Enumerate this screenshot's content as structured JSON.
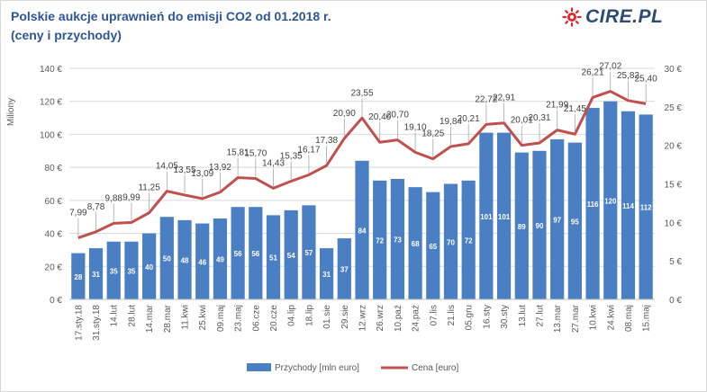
{
  "header": {
    "title_line1": "Polskie aukcje uprawnień do emisji CO2 od 01.2018 r.",
    "title_line2": "(ceny i przychody)",
    "logo_text": "CIRE.PL"
  },
  "colors": {
    "title": "#2e5597",
    "bars": "#4a7fc4",
    "line": "#c0504d",
    "axis_text": "#595959",
    "grid": "#d9d9d9",
    "logo_red": "#e0242b",
    "logo_text": "#2f4b73"
  },
  "chart_data": {
    "type": "bar+line",
    "title": "Polskie aukcje uprawnień do emisji CO2 od 01.2018 r. (ceny i przychody)",
    "ylabel": "Miliony",
    "ylim_left": [
      0,
      140
    ],
    "ylim_right": [
      0,
      30
    ],
    "yticks_left": [
      "0 €",
      "20 €",
      "40 €",
      "60 €",
      "80 €",
      "100 €",
      "120 €",
      "140 €"
    ],
    "yticks_right": [
      "0 €",
      "5 €",
      "10 €",
      "15 €",
      "20 €",
      "25 €",
      "30 €"
    ],
    "grid": true,
    "legend_position": "bottom",
    "categories": [
      "17.sty.18",
      "31.sty.18",
      "14.lut",
      "28.lut",
      "14.mar",
      "28.mar",
      "11.kwi",
      "25.kwi",
      "09.maj",
      "23.maj",
      "06.cze",
      "20.cze",
      "04.lip",
      "18.lip",
      "01.sie",
      "29.sie",
      "12.wrz",
      "26.wrz",
      "10.paź",
      "24.paź",
      "07.lis",
      "21.lis",
      "05.gru",
      "16.sty",
      "30.sty",
      "13.lut",
      "27.lut",
      "13.mar",
      "27.mar",
      "10.kwi",
      "24.kwi",
      "08.maj",
      "15.maj"
    ],
    "series": [
      {
        "name": "Przychody [mln euro]",
        "type": "bar",
        "axis": "left",
        "values": [
          28,
          31,
          35,
          35,
          40,
          50,
          48,
          46,
          49,
          56,
          56,
          51,
          54,
          57,
          31,
          37,
          84,
          72,
          73,
          68,
          65,
          70,
          72,
          101,
          101,
          89,
          90,
          97,
          95,
          116,
          120,
          114,
          112
        ]
      },
      {
        "name": "Cena [euro]",
        "type": "line",
        "axis": "right",
        "values": [
          7.99,
          8.78,
          9.88,
          9.99,
          11.25,
          14.05,
          13.55,
          13.09,
          13.92,
          15.81,
          15.7,
          14.43,
          15.35,
          16.17,
          17.38,
          20.9,
          23.55,
          20.4,
          20.7,
          19.1,
          18.25,
          19.84,
          20.21,
          22.72,
          22.91,
          20.01,
          20.31,
          21.99,
          21.45,
          26.21,
          27.02,
          25.82,
          25.4
        ],
        "labels": [
          "7,99",
          "8,78",
          "9,88",
          "9,99",
          "11,25",
          "14,05",
          "13,55",
          "13,09",
          "13,92",
          "15,81",
          "15,70",
          "14,43",
          "15,35",
          "16,17",
          "17,38",
          "20,90",
          "23,55",
          "20,40",
          "20,70",
          "19,10",
          "18,25",
          "19,84",
          "20,21",
          "22,72",
          "22,91",
          "20,01",
          "20,31",
          "21,99",
          "21,45",
          "26,21",
          "27,02",
          "25,82",
          "25,40"
        ]
      }
    ]
  }
}
